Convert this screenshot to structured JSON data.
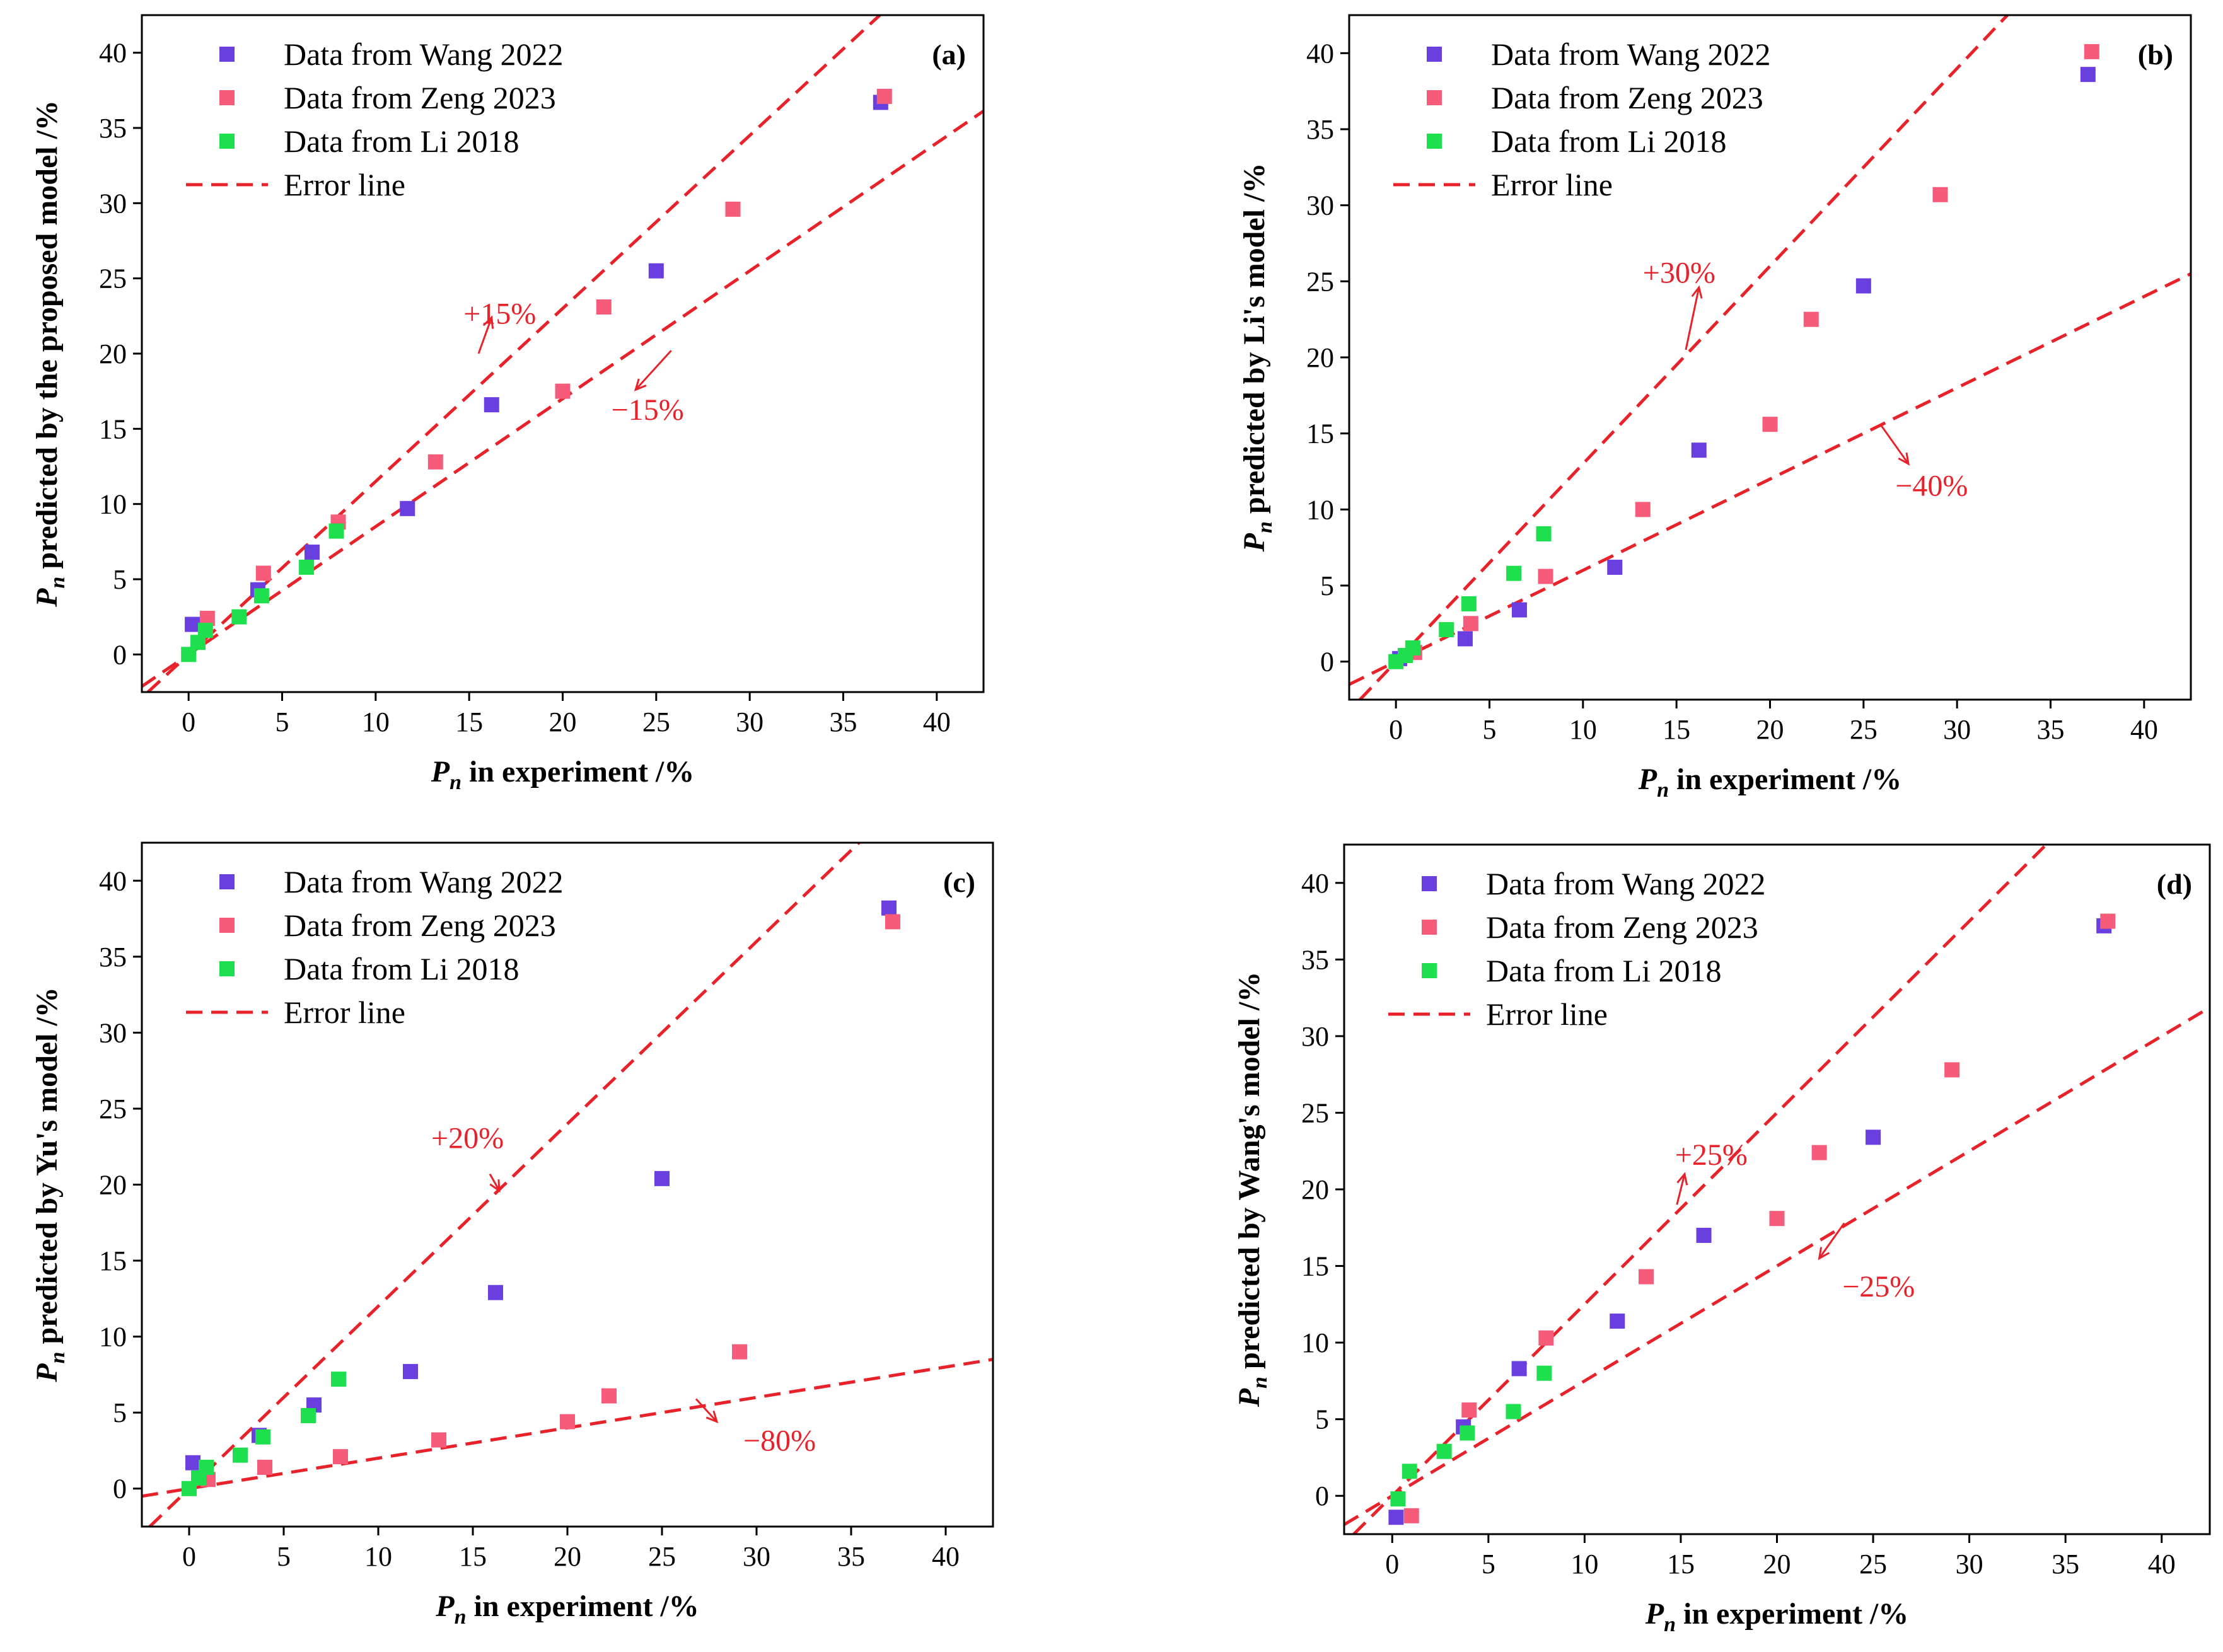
{
  "chart_data": [
    {
      "type": "scatter",
      "panel_label": "(a)",
      "xlabel": {
        "symbol": "P",
        "subscript": "n",
        "rest": " in experiment /%"
      },
      "ylabel": {
        "symbol": "P",
        "subscript": "n",
        "rest": " predicted by the proposed model /%"
      },
      "xlim": [
        -2.5,
        42.5
      ],
      "ylim": [
        -2.5,
        42.5
      ],
      "xticks": [
        0,
        5,
        10,
        15,
        20,
        25,
        30,
        35,
        40
      ],
      "yticks": [
        0,
        5,
        10,
        15,
        20,
        25,
        30,
        35,
        40
      ],
      "legend": [
        "Data from Wang 2022",
        "Data from Zeng 2023",
        "Data from Li 2018",
        "Error line"
      ],
      "legend_position": "top-left",
      "series": [
        {
          "name": "Data from Wang 2022",
          "color": "#6a3fe0",
          "points": [
            [
              0.2,
              2.0
            ],
            [
              3.7,
              4.3
            ],
            [
              6.6,
              6.8
            ],
            [
              11.7,
              9.7
            ],
            [
              16.2,
              16.6
            ],
            [
              25.0,
              25.5
            ],
            [
              37.0,
              36.7
            ]
          ]
        },
        {
          "name": "Data from Zeng 2023",
          "color": "#f65b79",
          "points": [
            [
              1.0,
              2.4
            ],
            [
              4.0,
              5.4
            ],
            [
              8.0,
              8.8
            ],
            [
              13.2,
              12.8
            ],
            [
              20.0,
              17.5
            ],
            [
              22.2,
              23.1
            ],
            [
              29.1,
              29.6
            ],
            [
              37.2,
              37.1
            ]
          ]
        },
        {
          "name": "Data from Li 2018",
          "color": "#1ee04e",
          "points": [
            [
              0.0,
              0.0
            ],
            [
              0.5,
              0.8
            ],
            [
              0.9,
              1.6
            ],
            [
              2.7,
              2.5
            ],
            [
              3.9,
              3.9
            ],
            [
              6.3,
              5.8
            ],
            [
              7.9,
              8.2
            ]
          ]
        }
      ],
      "error_lines": [
        {
          "label": "+15%",
          "factor": 1.15,
          "label_at": [
            14.7,
            22.0
          ],
          "arrow": [
            [
              16.2,
              22.4
            ],
            [
              15.5,
              20.0
            ]
          ]
        },
        {
          "label": "−15%",
          "factor": 0.85,
          "label_at": [
            22.6,
            15.6
          ],
          "arrow": [
            [
              23.9,
              17.6
            ],
            [
              25.8,
              20.2
            ]
          ]
        }
      ]
    },
    {
      "type": "scatter",
      "panel_label": "(b)",
      "xlabel": {
        "symbol": "P",
        "subscript": "n",
        "rest": " in experiment /%"
      },
      "ylabel": {
        "symbol": "P",
        "subscript": "n",
        "rest": " predicted by Li's model /%"
      },
      "xlim": [
        -2.5,
        42.5
      ],
      "ylim": [
        -2.5,
        42.5
      ],
      "xticks": [
        0,
        5,
        10,
        15,
        20,
        25,
        30,
        35,
        40
      ],
      "yticks": [
        0,
        5,
        10,
        15,
        20,
        25,
        30,
        35,
        40
      ],
      "legend": [
        "Data from Wang 2022",
        "Data from Zeng 2023",
        "Data from Li 2018",
        "Error line"
      ],
      "legend_position": "top-left",
      "series": [
        {
          "name": "Data from Wang 2022",
          "color": "#6a3fe0",
          "points": [
            [
              0.2,
              0.2
            ],
            [
              3.7,
              1.5
            ],
            [
              6.6,
              3.4
            ],
            [
              11.7,
              6.2
            ],
            [
              16.2,
              13.9
            ],
            [
              25.0,
              24.7
            ],
            [
              37.0,
              38.6
            ]
          ]
        },
        {
          "name": "Data from Zeng 2023",
          "color": "#f65b79",
          "points": [
            [
              1.0,
              0.6
            ],
            [
              4.0,
              2.5
            ],
            [
              8.0,
              5.6
            ],
            [
              13.2,
              10.0
            ],
            [
              20.0,
              15.6
            ],
            [
              22.2,
              22.5
            ],
            [
              29.1,
              30.7
            ],
            [
              37.2,
              40.1
            ]
          ]
        },
        {
          "name": "Data from Li 2018",
          "color": "#1ee04e",
          "points": [
            [
              0.0,
              0.0
            ],
            [
              0.5,
              0.4
            ],
            [
              0.9,
              0.9
            ],
            [
              2.7,
              2.1
            ],
            [
              3.9,
              3.8
            ],
            [
              6.3,
              5.8
            ],
            [
              7.9,
              8.4
            ]
          ]
        }
      ],
      "error_lines": [
        {
          "label": "+30%",
          "factor": 1.3,
          "label_at": [
            13.2,
            24.9
          ],
          "arrow": [
            [
              16.2,
              24.6
            ],
            [
              15.5,
              20.5
            ]
          ]
        },
        {
          "label": "−40%",
          "factor": 0.6,
          "label_at": [
            26.7,
            10.9
          ],
          "arrow": [
            [
              27.4,
              13.0
            ],
            [
              25.9,
              15.6
            ]
          ]
        }
      ]
    },
    {
      "type": "scatter",
      "panel_label": "(c)",
      "xlabel": {
        "symbol": "P",
        "subscript": "n",
        "rest": " in experiment /%"
      },
      "ylabel": {
        "symbol": "P",
        "subscript": "n",
        "rest": " predicted by Yu's model /%"
      },
      "xlim": [
        -2.5,
        42.5
      ],
      "ylim": [
        -2.5,
        42.5
      ],
      "xticks": [
        0,
        5,
        10,
        15,
        20,
        25,
        30,
        35,
        40
      ],
      "yticks": [
        0,
        5,
        10,
        15,
        20,
        25,
        30,
        35,
        40
      ],
      "legend": [
        "Data from Wang 2022",
        "Data from Zeng 2023",
        "Data from Li 2018",
        "Error line"
      ],
      "legend_position": "top-left",
      "series": [
        {
          "name": "Data from Wang 2022",
          "color": "#6a3fe0",
          "points": [
            [
              0.2,
              1.7
            ],
            [
              3.7,
              3.5
            ],
            [
              6.6,
              5.5
            ],
            [
              11.7,
              7.7
            ],
            [
              16.2,
              12.9
            ],
            [
              25.0,
              20.4
            ],
            [
              37.0,
              38.2
            ]
          ]
        },
        {
          "name": "Data from Zeng 2023",
          "color": "#f65b79",
          "points": [
            [
              1.0,
              0.6
            ],
            [
              4.0,
              1.4
            ],
            [
              8.0,
              2.1
            ],
            [
              13.2,
              3.2
            ],
            [
              20.0,
              4.4
            ],
            [
              22.2,
              6.1
            ],
            [
              29.1,
              9.0
            ],
            [
              37.2,
              37.3
            ]
          ]
        },
        {
          "name": "Data from Li 2018",
          "color": "#1ee04e",
          "points": [
            [
              0.0,
              0.0
            ],
            [
              0.5,
              0.7
            ],
            [
              0.9,
              1.4
            ],
            [
              2.7,
              2.2
            ],
            [
              3.9,
              3.4
            ],
            [
              6.3,
              4.8
            ],
            [
              7.9,
              7.2
            ]
          ]
        }
      ],
      "error_lines": [
        {
          "label": "+20%",
          "factor": 1.2,
          "label_at": [
            12.8,
            22.4
          ],
          "arrow": [
            [
              16.4,
              19.6
            ],
            [
              15.9,
              20.7
            ]
          ]
        },
        {
          "label": "−80%",
          "factor": 0.2,
          "label_at": [
            29.3,
            2.5
          ],
          "arrow": [
            [
              27.9,
              4.4
            ],
            [
              26.8,
              5.9
            ]
          ]
        }
      ]
    },
    {
      "type": "scatter",
      "panel_label": "(d)",
      "xlabel": {
        "symbol": "P",
        "subscript": "n",
        "rest": " in experiment /%"
      },
      "ylabel": {
        "symbol": "P",
        "subscript": "n",
        "rest": " predicted by Wang's model /%"
      },
      "xlim": [
        -2.5,
        42.5
      ],
      "ylim": [
        -2.5,
        42.5
      ],
      "xticks": [
        0,
        5,
        10,
        15,
        20,
        25,
        30,
        35,
        40
      ],
      "yticks": [
        0,
        5,
        10,
        15,
        20,
        25,
        30,
        35,
        40
      ],
      "legend": [
        "Data from Wang 2022",
        "Data from Zeng 2023",
        "Data from Li 2018",
        "Error line"
      ],
      "legend_position": "top-left",
      "series": [
        {
          "name": "Data from Wang 2022",
          "color": "#6a3fe0",
          "points": [
            [
              0.2,
              -1.4
            ],
            [
              3.7,
              4.5
            ],
            [
              6.6,
              8.3
            ],
            [
              11.7,
              11.4
            ],
            [
              16.2,
              17.0
            ],
            [
              25.0,
              23.4
            ],
            [
              37.0,
              37.2
            ]
          ]
        },
        {
          "name": "Data from Zeng 2023",
          "color": "#f65b79",
          "points": [
            [
              1.0,
              -1.3
            ],
            [
              4.0,
              5.6
            ],
            [
              8.0,
              10.3
            ],
            [
              13.2,
              14.3
            ],
            [
              20.0,
              18.1
            ],
            [
              22.2,
              22.4
            ],
            [
              29.1,
              27.8
            ],
            [
              37.2,
              37.5
            ]
          ]
        },
        {
          "name": "Data from Li 2018",
          "color": "#1ee04e",
          "points": [
            [
              0.3,
              -0.2
            ],
            [
              0.9,
              1.6
            ],
            [
              2.7,
              2.9
            ],
            [
              3.9,
              4.1
            ],
            [
              6.3,
              5.5
            ],
            [
              7.9,
              8.0
            ]
          ]
        }
      ],
      "error_lines": [
        {
          "label": "+25%",
          "factor": 1.25,
          "label_at": [
            14.7,
            21.6
          ],
          "arrow": [
            [
              15.2,
              21.0
            ],
            [
              14.8,
              19.0
            ]
          ]
        },
        {
          "label": "−25%",
          "factor": 0.75,
          "label_at": [
            23.4,
            13.0
          ],
          "arrow": [
            [
              22.2,
              15.5
            ],
            [
              23.5,
              17.8
            ]
          ]
        }
      ]
    }
  ]
}
